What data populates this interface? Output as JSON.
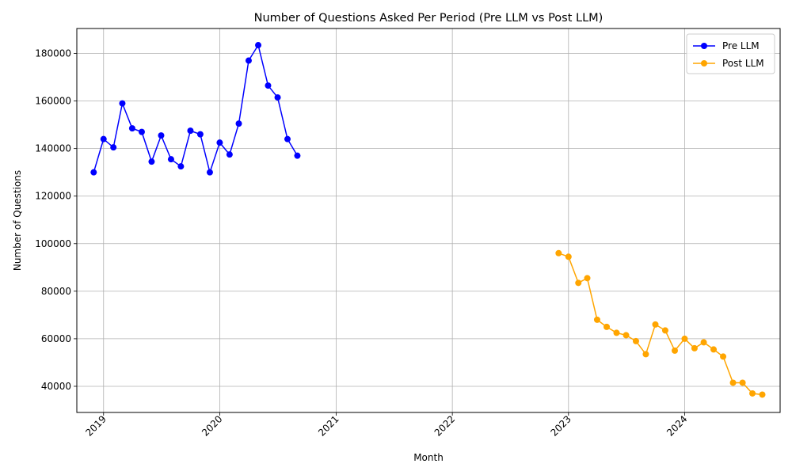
{
  "chart_data": {
    "type": "line",
    "title": "Number of Questions Asked Per Period (Pre LLM vs Post LLM)",
    "xlabel": "Month",
    "ylabel": "Number of Questions",
    "x_tick_labels": [
      "2019",
      "2020",
      "2021",
      "2022",
      "2023",
      "2024"
    ],
    "y_ticks": [
      40000,
      60000,
      80000,
      100000,
      120000,
      140000,
      160000,
      180000
    ],
    "y_tick_labels": [
      "40000",
      "60000",
      "80000",
      "100000",
      "120000",
      "140000",
      "160000",
      "180000"
    ],
    "xlim": [
      "2018-10-09",
      "2024-10-27"
    ],
    "ylim": [
      29000,
      190500
    ],
    "grid": true,
    "legend_position": "top-right",
    "series": [
      {
        "name": "Pre LLM",
        "color": "#0000ff",
        "points": [
          {
            "x": "2018-12-01",
            "y": 130000
          },
          {
            "x": "2019-01-01",
            "y": 144000
          },
          {
            "x": "2019-02-01",
            "y": 140500
          },
          {
            "x": "2019-03-01",
            "y": 159000
          },
          {
            "x": "2019-04-01",
            "y": 148500
          },
          {
            "x": "2019-05-01",
            "y": 147000
          },
          {
            "x": "2019-06-01",
            "y": 134500
          },
          {
            "x": "2019-07-01",
            "y": 145500
          },
          {
            "x": "2019-08-01",
            "y": 135500
          },
          {
            "x": "2019-09-01",
            "y": 132500
          },
          {
            "x": "2019-10-01",
            "y": 147500
          },
          {
            "x": "2019-11-01",
            "y": 146000
          },
          {
            "x": "2019-12-01",
            "y": 130000
          },
          {
            "x": "2020-01-01",
            "y": 142500
          },
          {
            "x": "2020-02-01",
            "y": 137500
          },
          {
            "x": "2020-03-01",
            "y": 150500
          },
          {
            "x": "2020-04-01",
            "y": 177000
          },
          {
            "x": "2020-05-01",
            "y": 183500
          },
          {
            "x": "2020-06-01",
            "y": 166500
          },
          {
            "x": "2020-07-01",
            "y": 161500
          },
          {
            "x": "2020-08-01",
            "y": 144000
          },
          {
            "x": "2020-09-01",
            "y": 137000
          }
        ]
      },
      {
        "name": "Post LLM",
        "color": "#ffa500",
        "points": [
          {
            "x": "2022-12-01",
            "y": 96000
          },
          {
            "x": "2023-01-01",
            "y": 94500
          },
          {
            "x": "2023-02-01",
            "y": 83500
          },
          {
            "x": "2023-03-01",
            "y": 85500
          },
          {
            "x": "2023-04-01",
            "y": 68000
          },
          {
            "x": "2023-05-01",
            "y": 65000
          },
          {
            "x": "2023-06-01",
            "y": 62500
          },
          {
            "x": "2023-07-01",
            "y": 61500
          },
          {
            "x": "2023-08-01",
            "y": 59000
          },
          {
            "x": "2023-09-01",
            "y": 53500
          },
          {
            "x": "2023-10-01",
            "y": 66000
          },
          {
            "x": "2023-11-01",
            "y": 63500
          },
          {
            "x": "2023-12-01",
            "y": 55000
          },
          {
            "x": "2024-01-01",
            "y": 60000
          },
          {
            "x": "2024-02-01",
            "y": 56000
          },
          {
            "x": "2024-03-01",
            "y": 58500
          },
          {
            "x": "2024-04-01",
            "y": 55500
          },
          {
            "x": "2024-05-01",
            "y": 52500
          },
          {
            "x": "2024-06-01",
            "y": 41500
          },
          {
            "x": "2024-07-01",
            "y": 41500
          },
          {
            "x": "2024-08-01",
            "y": 37000
          },
          {
            "x": "2024-09-01",
            "y": 36500
          }
        ]
      }
    ]
  }
}
